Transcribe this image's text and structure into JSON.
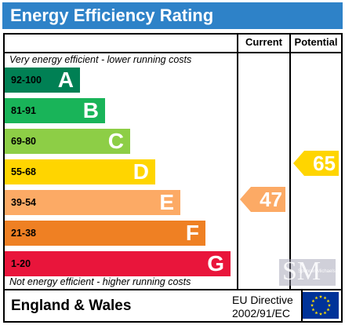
{
  "title": "Energy Efficiency Rating",
  "columns": {
    "current": "Current",
    "potential": "Potential"
  },
  "top_note": "Very energy efficient - lower running costs",
  "bottom_note": "Not energy efficient - higher running costs",
  "bands": [
    {
      "range": "92-100",
      "letter": "A",
      "color": "#008054"
    },
    {
      "range": "81-91",
      "letter": "B",
      "color": "#19b459"
    },
    {
      "range": "69-80",
      "letter": "C",
      "color": "#8dce46"
    },
    {
      "range": "55-68",
      "letter": "D",
      "color": "#ffd500"
    },
    {
      "range": "39-54",
      "letter": "E",
      "color": "#fcaa65"
    },
    {
      "range": "21-38",
      "letter": "F",
      "color": "#ef8023"
    },
    {
      "range": "1-20",
      "letter": "G",
      "color": "#e9153b"
    }
  ],
  "current_rating": {
    "value": "47",
    "band": "E",
    "color": "#fcaa65"
  },
  "potential_rating": {
    "value": "65",
    "band": "D",
    "color": "#ffd500"
  },
  "footer": {
    "region": "England & Wales",
    "directive_line1": "EU Directive",
    "directive_line2": "2002/91/EC"
  },
  "watermark": {
    "letters": "SM",
    "text": "Spencer Michaels"
  },
  "colors": {
    "title_bar": "#2e82c8",
    "eu_flag": "#003399",
    "eu_stars": "#ffdd00"
  },
  "icons": {
    "eu_flag": "eu-flag-icon"
  }
}
